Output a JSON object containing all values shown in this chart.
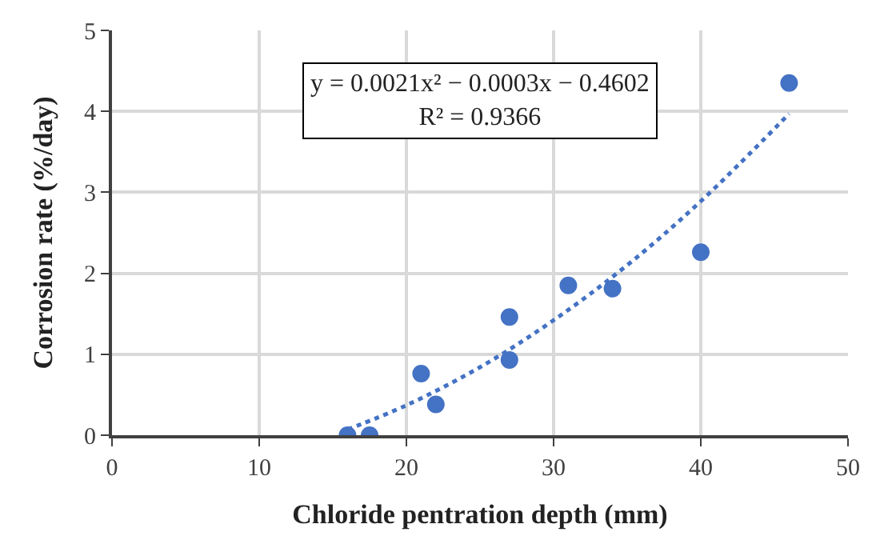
{
  "chart_data": {
    "type": "scatter",
    "xlabel": "Chloride pentration depth (mm)",
    "ylabel": "Corrosion rate (%/day)",
    "xlim": [
      0,
      50
    ],
    "xticks": [
      0,
      10,
      20,
      30,
      40,
      50
    ],
    "ylim": [
      0,
      5
    ],
    "yticks": [
      0,
      1,
      2,
      3,
      4,
      5
    ],
    "grid": true,
    "marker": "circle",
    "series": [
      {
        "color": "#4472c4",
        "x": [
          16,
          17.5,
          21,
          22,
          27,
          27,
          31,
          34,
          40,
          46
        ],
        "values": [
          0,
          0,
          0.76,
          0.38,
          1.46,
          0.93,
          1.85,
          1.81,
          2.26,
          4.35
        ]
      },
      {
        "type": "line",
        "color": "#4472c4",
        "line_style": "dotted",
        "marker": "none",
        "x": [
          16,
          20,
          25,
          30,
          35,
          40,
          46
        ],
        "values": [
          0.07,
          0.37,
          0.84,
          1.42,
          2.1,
          2.89,
          3.97
        ]
      }
    ],
    "annotations": [
      "y = 0.0021x² − 0.0003x − 0.4602\nR² = 0.9366"
    ]
  }
}
